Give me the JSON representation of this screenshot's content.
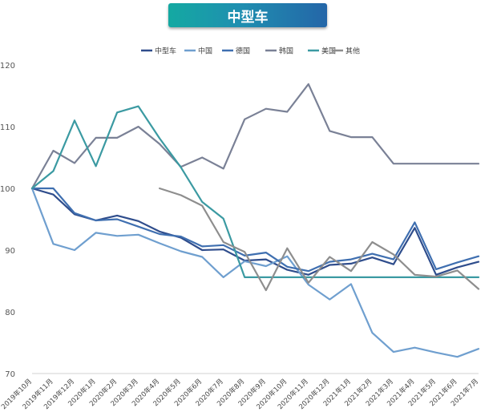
{
  "title": "中型车",
  "chart_data": {
    "type": "line",
    "title": "中型车",
    "ylim": [
      70,
      120
    ],
    "yticks": [
      70,
      80,
      90,
      100,
      110,
      120
    ],
    "grid": false,
    "legend_position": "top",
    "categories": [
      "2019年10月",
      "2019年11月",
      "2019年12月",
      "2020年1月",
      "2020年2月",
      "2020年3月",
      "2020年4月",
      "2020年5月",
      "2020年6月",
      "2020年7月",
      "2020年8月",
      "2020年9月",
      "2020年10月",
      "2020年11月",
      "2020年12月",
      "2021年1月",
      "2021年2月",
      "2021年3月",
      "2021年4月",
      "2021年5月",
      "2021年6月",
      "2021年7月"
    ],
    "series": [
      {
        "name": "中型车",
        "color": "#2f4d8c",
        "values": [
          100,
          99,
          95.8,
          94.8,
          95.6,
          94.7,
          93,
          92,
          90,
          90.1,
          88.3,
          88.5,
          86.8,
          86,
          87.6,
          87.8,
          88.8,
          87.7,
          93.6,
          86,
          87.2,
          88.1
        ]
      },
      {
        "name": "中国",
        "color": "#6f9fcf",
        "values": [
          100,
          91,
          90,
          92.8,
          92.3,
          92.5,
          91.1,
          89.8,
          88.9,
          85.6,
          88.2,
          87.4,
          89,
          84.4,
          82,
          84.5,
          76.6,
          73.5,
          74.2,
          73.4,
          72.7,
          74
        ]
      },
      {
        "name": "德国",
        "color": "#3f6fb0",
        "values": [
          100,
          100,
          96,
          94.8,
          95,
          93.8,
          92.6,
          92.2,
          90.6,
          90.8,
          89.1,
          89.6,
          87.3,
          86.6,
          88.1,
          88.5,
          89.4,
          88.5,
          94.5,
          86.9,
          88,
          89
        ]
      },
      {
        "name": "韩国",
        "color": "#7a8196",
        "values": [
          100,
          106.1,
          104.1,
          108.2,
          108.2,
          110,
          107.2,
          103.5,
          105,
          103.2,
          111.2,
          112.9,
          112.4,
          116.9,
          109.3,
          108.3,
          108.3,
          104,
          104,
          104,
          104,
          104
        ]
      },
      {
        "name": "美国",
        "color": "#3b9aa2",
        "values": [
          100,
          102.8,
          111,
          103.6,
          112.3,
          113.3,
          108.1,
          103.4,
          97.8,
          95.1,
          85.6,
          85.6,
          85.6,
          85.6,
          85.6,
          85.6,
          85.6,
          85.6,
          85.6,
          85.6,
          85.6,
          85.6
        ]
      },
      {
        "name": "其他",
        "color": "#8e8e8e",
        "values": [
          null,
          null,
          null,
          null,
          null,
          null,
          100,
          98.9,
          97.2,
          91.3,
          89.7,
          83.5,
          90.3,
          84.7,
          88.9,
          86.6,
          91.3,
          89.3,
          86,
          85.7,
          86.7,
          83.7
        ]
      }
    ]
  }
}
